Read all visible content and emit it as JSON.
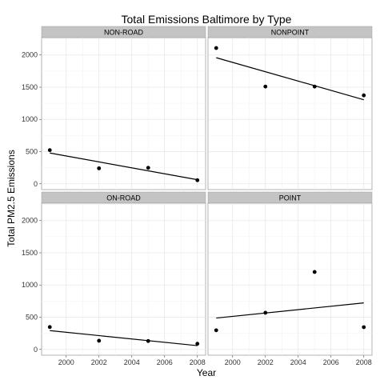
{
  "chart_data": {
    "type": "scatter",
    "title": "Total Emissions Baltimore by Type",
    "xlabel": "Year",
    "ylabel": "Total PM2.5 Emissions",
    "xlim": [
      1998.5,
      2008.5
    ],
    "ylim": [
      -90,
      2270
    ],
    "x_ticks": [
      2000,
      2002,
      2004,
      2006,
      2008
    ],
    "y_ticks": [
      0,
      500,
      1000,
      1500,
      2000
    ],
    "grid": true,
    "shared_axes": true,
    "panels": [
      {
        "label": "NON-ROAD",
        "x": [
          1999,
          2002,
          2005,
          2008
        ],
        "y": [
          522.9,
          240.8,
          248.9,
          55.8
        ],
        "trend": {
          "x": [
            1999,
            2008
          ],
          "y": [
            478,
            64
          ]
        }
      },
      {
        "label": "NONPOINT",
        "x": [
          1999,
          2002,
          2005,
          2008
        ],
        "y": [
          2107.6,
          1509.5,
          1509.5,
          1373.2
        ],
        "trend": {
          "x": [
            1999,
            2008
          ],
          "y": [
            1958,
            1305
          ]
        }
      },
      {
        "label": "ON-ROAD",
        "x": [
          1999,
          2002,
          2005,
          2008
        ],
        "y": [
          346.8,
          134.3,
          130.4,
          88.3
        ],
        "trend": {
          "x": [
            1999,
            2008
          ],
          "y": [
            292,
            58
          ]
        }
      },
      {
        "label": "POINT",
        "x": [
          1999,
          2002,
          2005,
          2008
        ],
        "y": [
          296.8,
          569.3,
          1202.5,
          345.0
        ],
        "trend": {
          "x": [
            1999,
            2008
          ],
          "y": [
            487,
            722
          ]
        }
      }
    ]
  }
}
